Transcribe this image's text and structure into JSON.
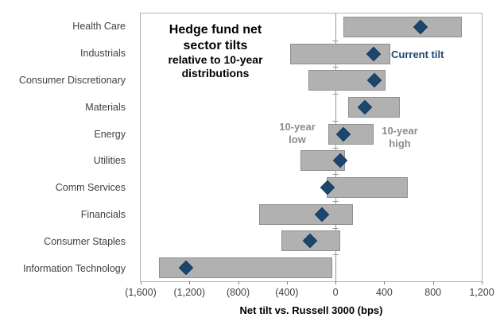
{
  "chart_data": {
    "type": "bar",
    "subtype": "horizontal-range-bars-with-marker",
    "title_line1": "Hedge fund net",
    "title_line2": "sector tilts",
    "subtitle_line1": "relative to 10-year",
    "subtitle_line2": "distributions",
    "xlabel": "Net tilt vs. Russell 3000 (bps)",
    "xlim": [
      -1600,
      1200
    ],
    "x_ticks": [
      -1600,
      -1200,
      -800,
      -400,
      0,
      400,
      800,
      1200
    ],
    "x_tick_labels": [
      "(1,600)",
      "(1,200)",
      "(800)",
      "(400)",
      "0",
      "400",
      "800",
      "1,200"
    ],
    "grid": "zero-line-only",
    "legend_position": "inline-annotations",
    "categories": [
      "Health Care",
      "Industrials",
      "Consumer Discretionary",
      "Materials",
      "Energy",
      "Utilities",
      "Comm Services",
      "Financials",
      "Consumer Staples",
      "Information Technology"
    ],
    "series": [
      {
        "name": "10-year low",
        "values": [
          65,
          -375,
          -220,
          105,
          -60,
          -290,
          -70,
          -630,
          -445,
          -1450
        ]
      },
      {
        "name": "10-year high",
        "values": [
          1040,
          450,
          410,
          525,
          315,
          80,
          590,
          140,
          40,
          -25
        ]
      },
      {
        "name": "Current tilt",
        "values": [
          700,
          315,
          320,
          240,
          65,
          40,
          -65,
          -110,
          -210,
          -1225
        ]
      }
    ],
    "annotations": {
      "current_tilt": "Current tilt",
      "low_line1": "10-year",
      "low_line2": "low",
      "high_line1": "10-year",
      "high_line2": "high"
    },
    "colors": {
      "bar_fill": "#b1b1b1",
      "bar_border": "#8f8f8f",
      "marker": "#1c466f",
      "marker_border": "#143a5f",
      "annotation_navy": "#1c466f",
      "annotation_gray": "#8c8c8c",
      "axis_text": "#3f3f3f",
      "title_text": "#000000",
      "gridline": "#999999",
      "frame": "#b5b5b5"
    }
  }
}
